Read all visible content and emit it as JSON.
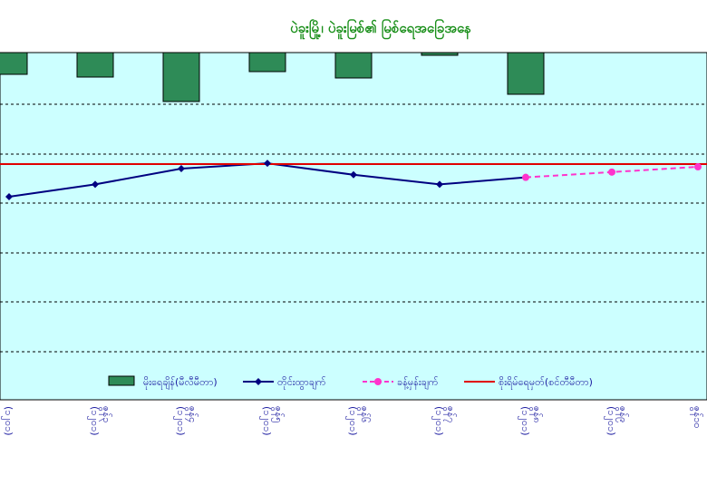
{
  "chart_data": {
    "type": "bar-line-combo",
    "title": "ပဲခူးမြို့၊ ပဲခူးမြစ်၏ မြစ်ရေအခြေအနေ",
    "categories": [
      "(၁၂၀၁)",
      "(၁၂၀၁)\nဇွန်၃",
      "(၁၂၀၁)\nဇွန်၄",
      "(၁၂၀၁)\nဇွန်၅",
      "(၁၂၀၁)\nဇွန်၆",
      "(၁၂၀၁)\nဇွန်၇",
      "(၁၂၀၁)\nဇွန်၈",
      "(၁၂၀၁)\nဇွန်၉",
      "ဇွန်၁၀"
    ],
    "series": [
      {
        "name": "မိုးရေချိန်(မီလီမီတာ)",
        "type": "bar",
        "color": "#2e8b57",
        "values": [
          24,
          27,
          54,
          21,
          28,
          3,
          46,
          null,
          null
        ]
      },
      {
        "name": "တိုင်းထွာချက်",
        "type": "line",
        "color": "#000080",
        "values": [
          1.0,
          0.86,
          0.68,
          0.62,
          0.75,
          0.86,
          0.78,
          null,
          null
        ]
      },
      {
        "name": "ခန့်မှန်းချက်",
        "type": "line-dashed",
        "color": "#ff33cc",
        "values": [
          null,
          null,
          null,
          null,
          null,
          null,
          0.78,
          0.72,
          0.66
        ]
      },
      {
        "name": "စိုးရိမ်ရေမှတ်(စင်တီမီတာ)",
        "type": "line",
        "color": "#e00000",
        "values": [
          0.67,
          0.67,
          0.67,
          0.67,
          0.67,
          0.67,
          0.67,
          0.67,
          0.67
        ]
      }
    ],
    "grid": true,
    "legend": "bottom"
  }
}
